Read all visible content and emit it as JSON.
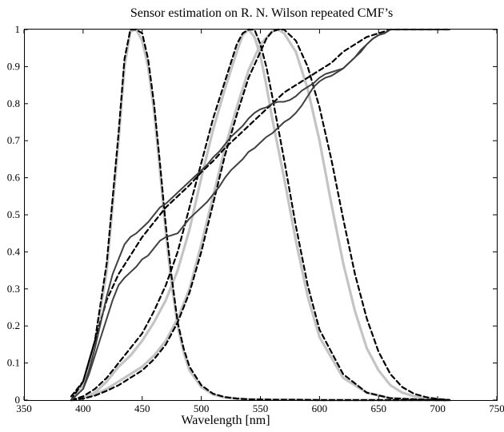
{
  "chart_data": {
    "type": "line",
    "title": "Sensor estimation on R. N. Wilson repeated CMF’s",
    "xlabel": "Wavelength [nm]",
    "ylabel": "",
    "xlim": [
      350,
      750
    ],
    "ylim": [
      0,
      1
    ],
    "xticks": [
      350,
      400,
      450,
      500,
      550,
      600,
      650,
      700,
      750
    ],
    "yticks": [
      0,
      0.1,
      0.2,
      0.3,
      0.4,
      0.5,
      0.6,
      0.7,
      0.8,
      0.9,
      1
    ],
    "ytick_labels": [
      "0",
      "0.1",
      "0.2",
      "0.3",
      "0.4",
      "0.5",
      "0.6",
      "0.7",
      "0.8",
      "0.9",
      "1"
    ],
    "grid": false,
    "colors": {
      "measured": "#c4c4c4",
      "estimated": "#000000",
      "cumulative": "#404040"
    },
    "series": [
      {
        "style": "measured",
        "x": [
          390,
          400,
          410,
          420,
          430,
          435,
          440,
          445,
          450,
          455,
          460,
          465,
          470,
          475,
          480,
          485,
          490,
          500,
          510,
          520,
          530,
          540,
          560,
          580,
          600,
          620,
          640,
          660,
          680,
          700,
          710
        ],
        "y": [
          0.01,
          0.04,
          0.15,
          0.35,
          0.7,
          0.9,
          0.995,
          1,
          0.97,
          0.9,
          0.78,
          0.62,
          0.45,
          0.31,
          0.2,
          0.13,
          0.08,
          0.035,
          0.015,
          0.007,
          0.004,
          0.002,
          0.001,
          0.001,
          0,
          0,
          0,
          0,
          0,
          0,
          0
        ]
      },
      {
        "style": "measured",
        "x": [
          390,
          400,
          410,
          420,
          430,
          440,
          450,
          460,
          470,
          480,
          490,
          500,
          510,
          520,
          530,
          535,
          540,
          545,
          550,
          555,
          560,
          570,
          580,
          590,
          600,
          620,
          640,
          660,
          680,
          700,
          710
        ],
        "y": [
          0,
          0.005,
          0.02,
          0.05,
          0.09,
          0.12,
          0.16,
          0.21,
          0.27,
          0.35,
          0.46,
          0.6,
          0.73,
          0.84,
          0.94,
          0.985,
          1,
          0.98,
          0.93,
          0.85,
          0.76,
          0.6,
          0.43,
          0.28,
          0.17,
          0.06,
          0.02,
          0.005,
          0.002,
          0,
          0
        ]
      },
      {
        "style": "measured",
        "x": [
          390,
          400,
          410,
          420,
          430,
          440,
          450,
          460,
          470,
          480,
          490,
          500,
          510,
          520,
          530,
          540,
          550,
          560,
          565,
          570,
          580,
          590,
          600,
          610,
          620,
          630,
          640,
          650,
          660,
          670,
          680,
          690,
          700,
          710
        ],
        "y": [
          0,
          0.005,
          0.015,
          0.03,
          0.05,
          0.07,
          0.09,
          0.12,
          0.16,
          0.22,
          0.3,
          0.42,
          0.55,
          0.68,
          0.79,
          0.89,
          0.96,
          0.995,
          1,
          0.99,
          0.94,
          0.84,
          0.7,
          0.53,
          0.37,
          0.24,
          0.14,
          0.08,
          0.04,
          0.02,
          0.01,
          0.004,
          0.002,
          0
        ]
      },
      {
        "style": "estimated",
        "x": [
          390,
          400,
          410,
          420,
          430,
          435,
          440,
          445,
          450,
          455,
          460,
          465,
          470,
          475,
          480,
          485,
          490,
          500,
          510,
          520,
          530,
          540,
          560,
          580,
          600,
          620,
          640,
          660,
          680,
          700,
          710
        ],
        "y": [
          0.01,
          0.05,
          0.16,
          0.37,
          0.72,
          0.92,
          1,
          1,
          0.99,
          0.92,
          0.8,
          0.64,
          0.47,
          0.33,
          0.21,
          0.14,
          0.09,
          0.04,
          0.017,
          0.008,
          0.004,
          0.002,
          0.001,
          0.001,
          0,
          0,
          0,
          0,
          0,
          0,
          0
        ]
      },
      {
        "style": "estimated",
        "x": [
          390,
          400,
          410,
          420,
          430,
          440,
          450,
          460,
          470,
          480,
          490,
          500,
          510,
          520,
          525,
          530,
          535,
          540,
          545,
          550,
          555,
          560,
          570,
          580,
          590,
          600,
          620,
          640,
          660,
          680,
          700,
          710
        ],
        "y": [
          0,
          0.01,
          0.03,
          0.06,
          0.1,
          0.14,
          0.18,
          0.24,
          0.31,
          0.4,
          0.52,
          0.64,
          0.76,
          0.86,
          0.91,
          0.96,
          0.99,
          1,
          1,
          0.96,
          0.9,
          0.82,
          0.65,
          0.47,
          0.31,
          0.19,
          0.07,
          0.02,
          0.005,
          0.002,
          0,
          0
        ]
      },
      {
        "style": "estimated",
        "x": [
          390,
          400,
          410,
          420,
          430,
          440,
          450,
          460,
          470,
          480,
          490,
          500,
          510,
          520,
          530,
          540,
          550,
          555,
          560,
          565,
          570,
          580,
          590,
          600,
          610,
          620,
          630,
          640,
          650,
          660,
          670,
          680,
          690,
          700,
          710
        ],
        "y": [
          0,
          0.004,
          0.012,
          0.025,
          0.04,
          0.06,
          0.08,
          0.11,
          0.15,
          0.21,
          0.29,
          0.4,
          0.53,
          0.66,
          0.77,
          0.87,
          0.94,
          0.975,
          0.995,
          1,
          1,
          0.97,
          0.9,
          0.79,
          0.65,
          0.49,
          0.34,
          0.22,
          0.13,
          0.07,
          0.035,
          0.017,
          0.008,
          0.003,
          0
        ]
      },
      {
        "style": "estimated",
        "x": [
          390,
          400,
          410,
          420,
          430,
          440,
          450,
          460,
          470,
          480,
          490,
          500,
          510,
          520,
          530,
          540,
          550,
          560,
          570,
          580,
          590,
          600,
          610,
          620,
          630,
          640,
          650,
          660,
          670,
          680,
          690,
          700,
          710
        ],
        "y": [
          0,
          0.05,
          0.16,
          0.27,
          0.34,
          0.39,
          0.44,
          0.48,
          0.52,
          0.55,
          0.58,
          0.615,
          0.645,
          0.68,
          0.71,
          0.74,
          0.77,
          0.8,
          0.83,
          0.85,
          0.87,
          0.89,
          0.91,
          0.94,
          0.96,
          0.98,
          0.99,
          1,
          1,
          1,
          1,
          1,
          1
        ]
      },
      {
        "style": "cumulative",
        "x": [
          390,
          400,
          405,
          410,
          415,
          420,
          425,
          430,
          435,
          440,
          445,
          450,
          455,
          460,
          465,
          470,
          475,
          480,
          485,
          490,
          495,
          500,
          505,
          510,
          515,
          520,
          525,
          530,
          535,
          540,
          545,
          550,
          555,
          560,
          565,
          570,
          575,
          580,
          585,
          590,
          595,
          600,
          605,
          610,
          615,
          620,
          625,
          630,
          635,
          640,
          645,
          650,
          655,
          660,
          670,
          680,
          690,
          700,
          710
        ],
        "y": [
          0,
          0.03,
          0.08,
          0.14,
          0.21,
          0.28,
          0.34,
          0.38,
          0.42,
          0.44,
          0.45,
          0.465,
          0.48,
          0.5,
          0.52,
          0.53,
          0.545,
          0.56,
          0.575,
          0.59,
          0.605,
          0.62,
          0.635,
          0.655,
          0.67,
          0.69,
          0.71,
          0.725,
          0.74,
          0.76,
          0.775,
          0.785,
          0.79,
          0.8,
          0.805,
          0.805,
          0.81,
          0.82,
          0.835,
          0.845,
          0.855,
          0.87,
          0.88,
          0.885,
          0.89,
          0.895,
          0.91,
          0.925,
          0.94,
          0.96,
          0.975,
          0.985,
          0.99,
          1,
          1,
          1,
          1,
          1,
          1
        ]
      },
      {
        "style": "cumulative",
        "x": [
          390,
          400,
          405,
          410,
          415,
          420,
          425,
          430,
          435,
          440,
          445,
          450,
          455,
          460,
          465,
          470,
          475,
          480,
          485,
          490,
          495,
          500,
          505,
          510,
          515,
          520,
          525,
          530,
          535,
          540,
          545,
          550,
          555,
          560,
          565,
          570,
          575,
          580,
          585,
          590,
          595,
          600,
          605,
          610,
          615,
          620,
          625,
          630,
          635,
          640,
          645,
          650,
          655,
          660,
          670,
          680,
          690,
          700,
          710
        ],
        "y": [
          0,
          0.03,
          0.07,
          0.12,
          0.17,
          0.22,
          0.27,
          0.31,
          0.33,
          0.345,
          0.36,
          0.38,
          0.39,
          0.41,
          0.43,
          0.44,
          0.445,
          0.45,
          0.47,
          0.49,
          0.505,
          0.52,
          0.535,
          0.555,
          0.575,
          0.6,
          0.62,
          0.635,
          0.65,
          0.67,
          0.68,
          0.695,
          0.71,
          0.72,
          0.735,
          0.75,
          0.76,
          0.775,
          0.795,
          0.82,
          0.845,
          0.86,
          0.87,
          0.875,
          0.885,
          0.895,
          0.91,
          0.925,
          0.945,
          0.96,
          0.975,
          0.985,
          0.99,
          1,
          1,
          1,
          1,
          1,
          1
        ]
      }
    ]
  }
}
